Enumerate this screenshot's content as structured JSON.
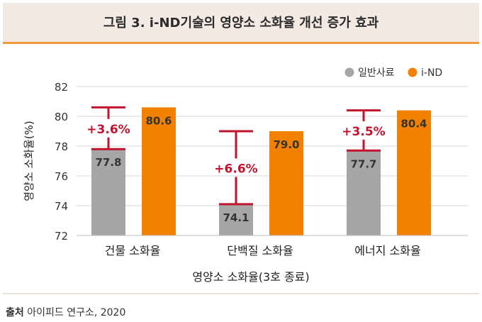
{
  "header": {
    "title": "그림 3. i-ND기술의 영양소 소화율 개선 증가 효과"
  },
  "source": {
    "label": "출처",
    "text": "아이피드 연구소, 2020"
  },
  "colors": {
    "general": "#a6a6a6",
    "ind": "#f28100",
    "arrow": "#c0142e",
    "grid": "#d4d4d4",
    "accent": "#f39a3c"
  },
  "chart_data": {
    "type": "bar",
    "title": "그림 3. i-ND기술의 영양소 소화율 개선 증가 효과",
    "xlabel": "영양소 소화율(3호 종료)",
    "ylabel": "영양소 소화율(%)",
    "ylim": [
      72,
      82
    ],
    "yticks": [
      72,
      74,
      76,
      78,
      80,
      82
    ],
    "grid": true,
    "legend_position": "top-right",
    "categories": [
      "건물 소화율",
      "단백질 소화율",
      "에너지 소화율"
    ],
    "series": [
      {
        "name": "일반사료",
        "values": [
          77.8,
          74.1,
          77.7
        ],
        "labels": [
          "77.8",
          "74.1",
          "77.7"
        ],
        "color": "#a6a6a6"
      },
      {
        "name": "i-ND",
        "values": [
          80.6,
          79.0,
          80.4
        ],
        "labels": [
          "80.6",
          "79.0",
          "80.4"
        ],
        "color": "#f28100"
      }
    ],
    "annotations": [
      "+3.6%",
      "+6.6%",
      "+3.5%"
    ]
  }
}
